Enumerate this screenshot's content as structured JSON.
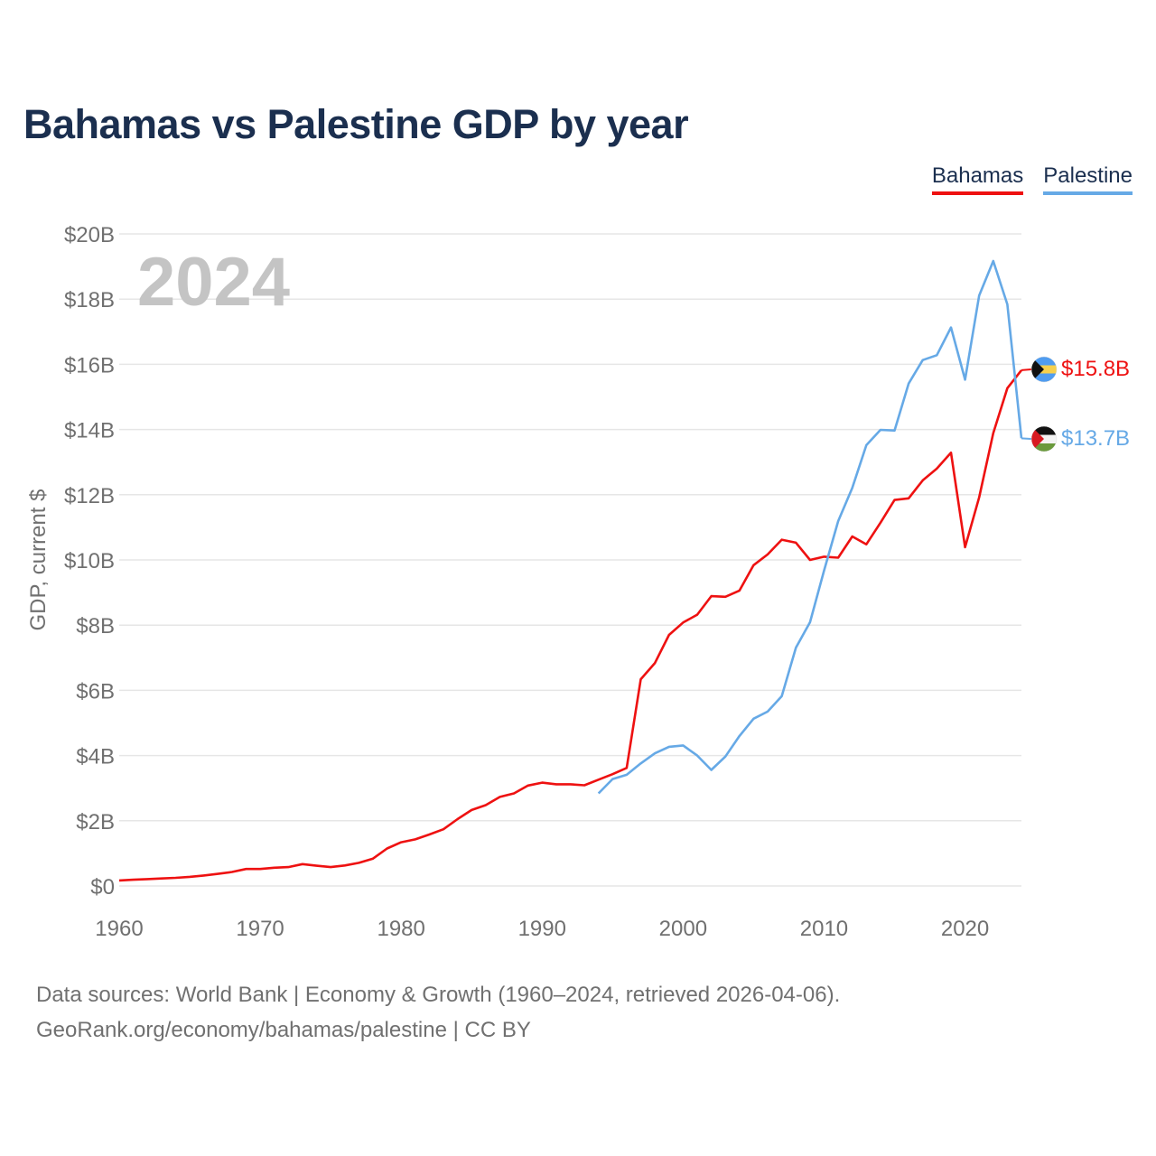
{
  "title": "Bahamas vs Palestine GDP by year",
  "legend": {
    "bahamas": "Bahamas",
    "palestine": "Palestine"
  },
  "year_label": "2024",
  "footer": {
    "line1": "Data sources: World Bank | Economy & Growth (1960–2024, retrieved 2026-04-06).",
    "line2": "GeoRank.org/economy/bahamas/palestine | CC BY"
  },
  "colors": {
    "bahamas": "#ee1111",
    "palestine": "#66a9e6",
    "title": "#1b2f4f"
  },
  "chart_data": {
    "type": "line",
    "title": "Bahamas vs Palestine GDP by year",
    "xlabel": "",
    "ylabel": "GDP, current $",
    "xlim": [
      1960,
      2024
    ],
    "ylim": [
      0,
      20
    ],
    "y_unit": "billion USD",
    "x_ticks": [
      1960,
      1970,
      1980,
      1990,
      2000,
      2010,
      2020
    ],
    "x_tick_labels": [
      "1960",
      "1970",
      "1980",
      "1990",
      "2000",
      "2010",
      "2020"
    ],
    "y_ticks": [
      0,
      2,
      4,
      6,
      8,
      10,
      12,
      14,
      16,
      18,
      20
    ],
    "y_tick_labels": [
      "$0",
      "$2B",
      "$4B",
      "$6B",
      "$8B",
      "$10B",
      "$12B",
      "$14B",
      "$16B",
      "$18B",
      "$20B"
    ],
    "grid": true,
    "legend_position": "top-right",
    "series": [
      {
        "name": "Bahamas",
        "color": "#ee1111",
        "end_label": "$15.8B",
        "x": [
          1960,
          1961,
          1962,
          1963,
          1964,
          1965,
          1966,
          1967,
          1968,
          1969,
          1970,
          1971,
          1972,
          1973,
          1974,
          1975,
          1976,
          1977,
          1978,
          1979,
          1980,
          1981,
          1982,
          1983,
          1984,
          1985,
          1986,
          1987,
          1988,
          1989,
          1990,
          1991,
          1992,
          1993,
          1994,
          1995,
          1996,
          1997,
          1998,
          1999,
          2000,
          2001,
          2002,
          2003,
          2004,
          2005,
          2006,
          2007,
          2008,
          2009,
          2010,
          2011,
          2012,
          2013,
          2014,
          2015,
          2016,
          2017,
          2018,
          2019,
          2020,
          2021,
          2022,
          2023,
          2024
        ],
        "values": [
          0.17,
          0.19,
          0.21,
          0.23,
          0.25,
          0.28,
          0.32,
          0.37,
          0.43,
          0.52,
          0.52,
          0.56,
          0.58,
          0.67,
          0.62,
          0.58,
          0.63,
          0.71,
          0.84,
          1.15,
          1.34,
          1.43,
          1.58,
          1.74,
          2.05,
          2.33,
          2.48,
          2.73,
          2.84,
          3.08,
          3.17,
          3.12,
          3.12,
          3.09,
          3.26,
          3.43,
          3.62,
          6.34,
          6.84,
          7.7,
          8.08,
          8.32,
          8.89,
          8.87,
          9.06,
          9.84,
          10.17,
          10.62,
          10.53,
          10.0,
          10.1,
          10.07,
          10.72,
          10.48,
          11.14,
          11.84,
          11.89,
          12.44,
          12.8,
          13.29,
          10.39,
          11.92,
          13.89,
          15.27,
          15.82
        ]
      },
      {
        "name": "Palestine",
        "color": "#66a9e6",
        "end_label": "$13.7B",
        "x": [
          1994,
          1995,
          1996,
          1997,
          1998,
          1999,
          2000,
          2001,
          2002,
          2003,
          2004,
          2005,
          2006,
          2007,
          2008,
          2009,
          2010,
          2011,
          2012,
          2013,
          2014,
          2015,
          2016,
          2017,
          2018,
          2019,
          2020,
          2021,
          2022,
          2023,
          2024
        ],
        "values": [
          2.84,
          3.28,
          3.41,
          3.76,
          4.07,
          4.27,
          4.31,
          4.0,
          3.56,
          3.97,
          4.6,
          5.13,
          5.35,
          5.82,
          7.31,
          8.09,
          9.68,
          11.19,
          12.21,
          13.52,
          13.99,
          13.97,
          15.41,
          16.13,
          16.28,
          17.13,
          15.53,
          18.11,
          19.17,
          17.84,
          13.73
        ]
      }
    ]
  }
}
